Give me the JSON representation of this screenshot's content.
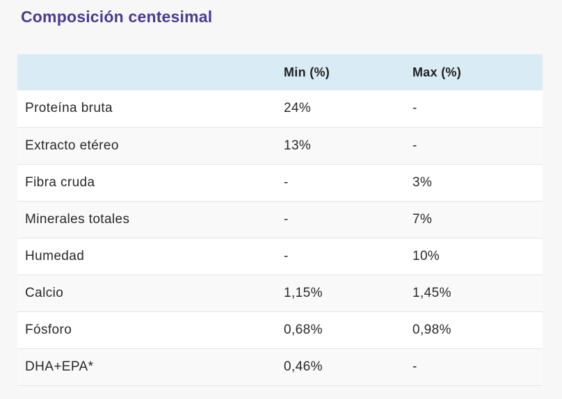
{
  "page": {
    "title": "Composición centesimal"
  },
  "table": {
    "columns": {
      "component": "",
      "min": "Min (%)",
      "max": "Max (%)"
    },
    "rows": [
      {
        "label": "Proteína bruta",
        "min": "24%",
        "max": "-"
      },
      {
        "label": "Extracto etéreo",
        "min": "13%",
        "max": "-"
      },
      {
        "label": "Fibra cruda",
        "min": "-",
        "max": "3%"
      },
      {
        "label": "Minerales totales",
        "min": "-",
        "max": "7%"
      },
      {
        "label": "Humedad",
        "min": "-",
        "max": "10%"
      },
      {
        "label": "Calcio",
        "min": "1,15%",
        "max": "1,45%"
      },
      {
        "label": "Fósforo",
        "min": "0,68%",
        "max": "0,98%"
      },
      {
        "label": "DHA+EPA*",
        "min": "0,46%",
        "max": "-"
      }
    ]
  },
  "colors": {
    "title": "#4a3a94",
    "header_bg": "#d9ecf5",
    "page_bg": "#f7f7f7",
    "row_alt_bg": "#f9f9f9",
    "border": "#e4e4e4",
    "text": "#282828"
  }
}
